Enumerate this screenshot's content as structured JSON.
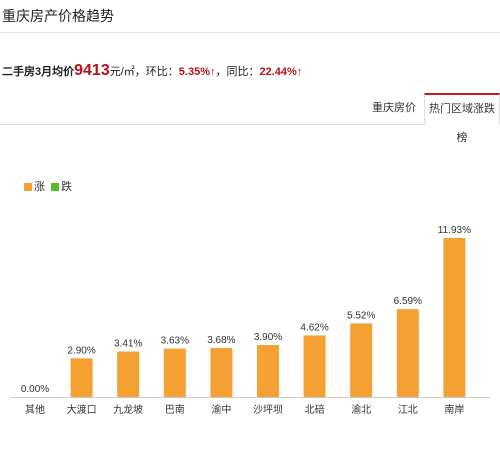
{
  "header": {
    "title": "重庆房产价格趋势"
  },
  "summary": {
    "lead": "二手房3月均价",
    "price": "9413",
    "unit": "元/㎡，环比：",
    "mom": "5.35%↑",
    "yoy_label": "，同比：",
    "yoy": "22.44%↑"
  },
  "tabs": [
    {
      "label": "重庆房价"
    },
    {
      "label": "热门区域涨跌榜"
    }
  ],
  "legend": {
    "up_label": "涨",
    "down_label": "跌",
    "up_color": "#f5a033",
    "down_color": "#5cb82f"
  },
  "colors": {
    "accent": "#b5121b",
    "bar": "#f5a033"
  },
  "chart_data": {
    "type": "bar",
    "title": "",
    "xlabel": "",
    "ylabel": "",
    "categories": [
      "其他",
      "大渡口",
      "九龙坡",
      "巴南",
      "渝中",
      "沙坪坝",
      "北碚",
      "渝北",
      "江北",
      "南岸"
    ],
    "values": [
      0.0,
      2.9,
      3.41,
      3.63,
      3.68,
      3.9,
      4.62,
      5.52,
      6.59,
      11.93
    ],
    "value_labels": [
      "0.00%",
      "2.90%",
      "3.41%",
      "3.63%",
      "3.68%",
      "3.90%",
      "4.62%",
      "5.52%",
      "6.59%",
      "11.93%"
    ],
    "ylim": [
      0,
      11.93
    ],
    "grid": false,
    "legend": "top-left"
  }
}
